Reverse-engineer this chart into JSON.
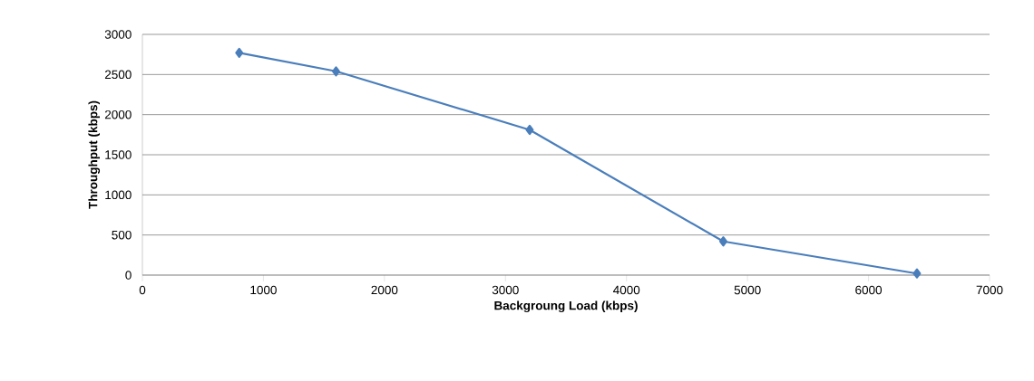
{
  "chart_data": {
    "type": "line",
    "xlabel": "Backgroung Load (kbps)",
    "ylabel": "Throughput (kbps)",
    "x": [
      800,
      1600,
      3200,
      4800,
      6400
    ],
    "series": [
      {
        "color": "#4a7ebb",
        "values": [
          2770,
          2540,
          1810,
          420,
          20
        ]
      }
    ],
    "xlim": [
      0,
      7000
    ],
    "xticks": [
      0,
      1000,
      2000,
      3000,
      4000,
      5000,
      6000,
      7000
    ],
    "ylim": [
      0,
      3000
    ],
    "yticks": [
      0,
      500,
      1000,
      1500,
      2000,
      2500,
      3000
    ],
    "grid": "y",
    "marker": "diamond",
    "line_style": "solid"
  }
}
